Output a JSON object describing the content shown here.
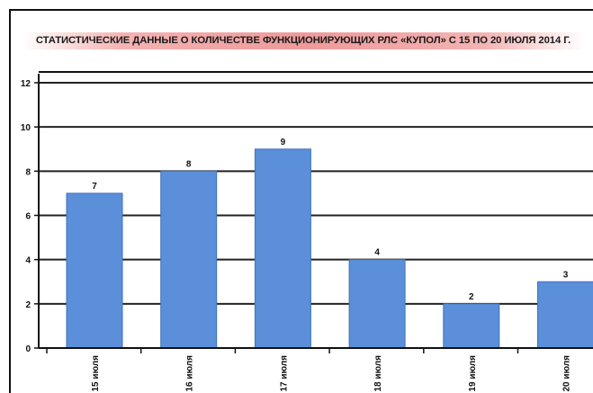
{
  "chart_data": {
    "type": "bar",
    "title": "СТАТИСТИЧЕСКИЕ ДАННЫЕ О КОЛИЧЕСТВЕ ФУНКЦИОНИРУЮЩИХ РЛС «КУПОЛ» С 15 ПО 20 ИЮЛЯ 2014 Г.",
    "categories": [
      "15 июля",
      "16 июля",
      "17 июля",
      "18 июля",
      "19 июля",
      "20 июля"
    ],
    "values": [
      7,
      8,
      9,
      4,
      2,
      3
    ],
    "data_labels": [
      "7",
      "8",
      "9",
      "4",
      "2",
      "3"
    ],
    "y_ticks": [
      "0",
      "2",
      "4",
      "6",
      "8",
      "10",
      "12"
    ],
    "ylim": [
      0,
      12
    ],
    "xlabel": "",
    "ylabel": "",
    "grid": true,
    "legend": "none",
    "colors": {
      "bar": "#5b8fd9",
      "bar_edge": "#3f72bd",
      "grid": "#222222",
      "axis": "#111111",
      "title_band": "#ee9a9a"
    }
  }
}
